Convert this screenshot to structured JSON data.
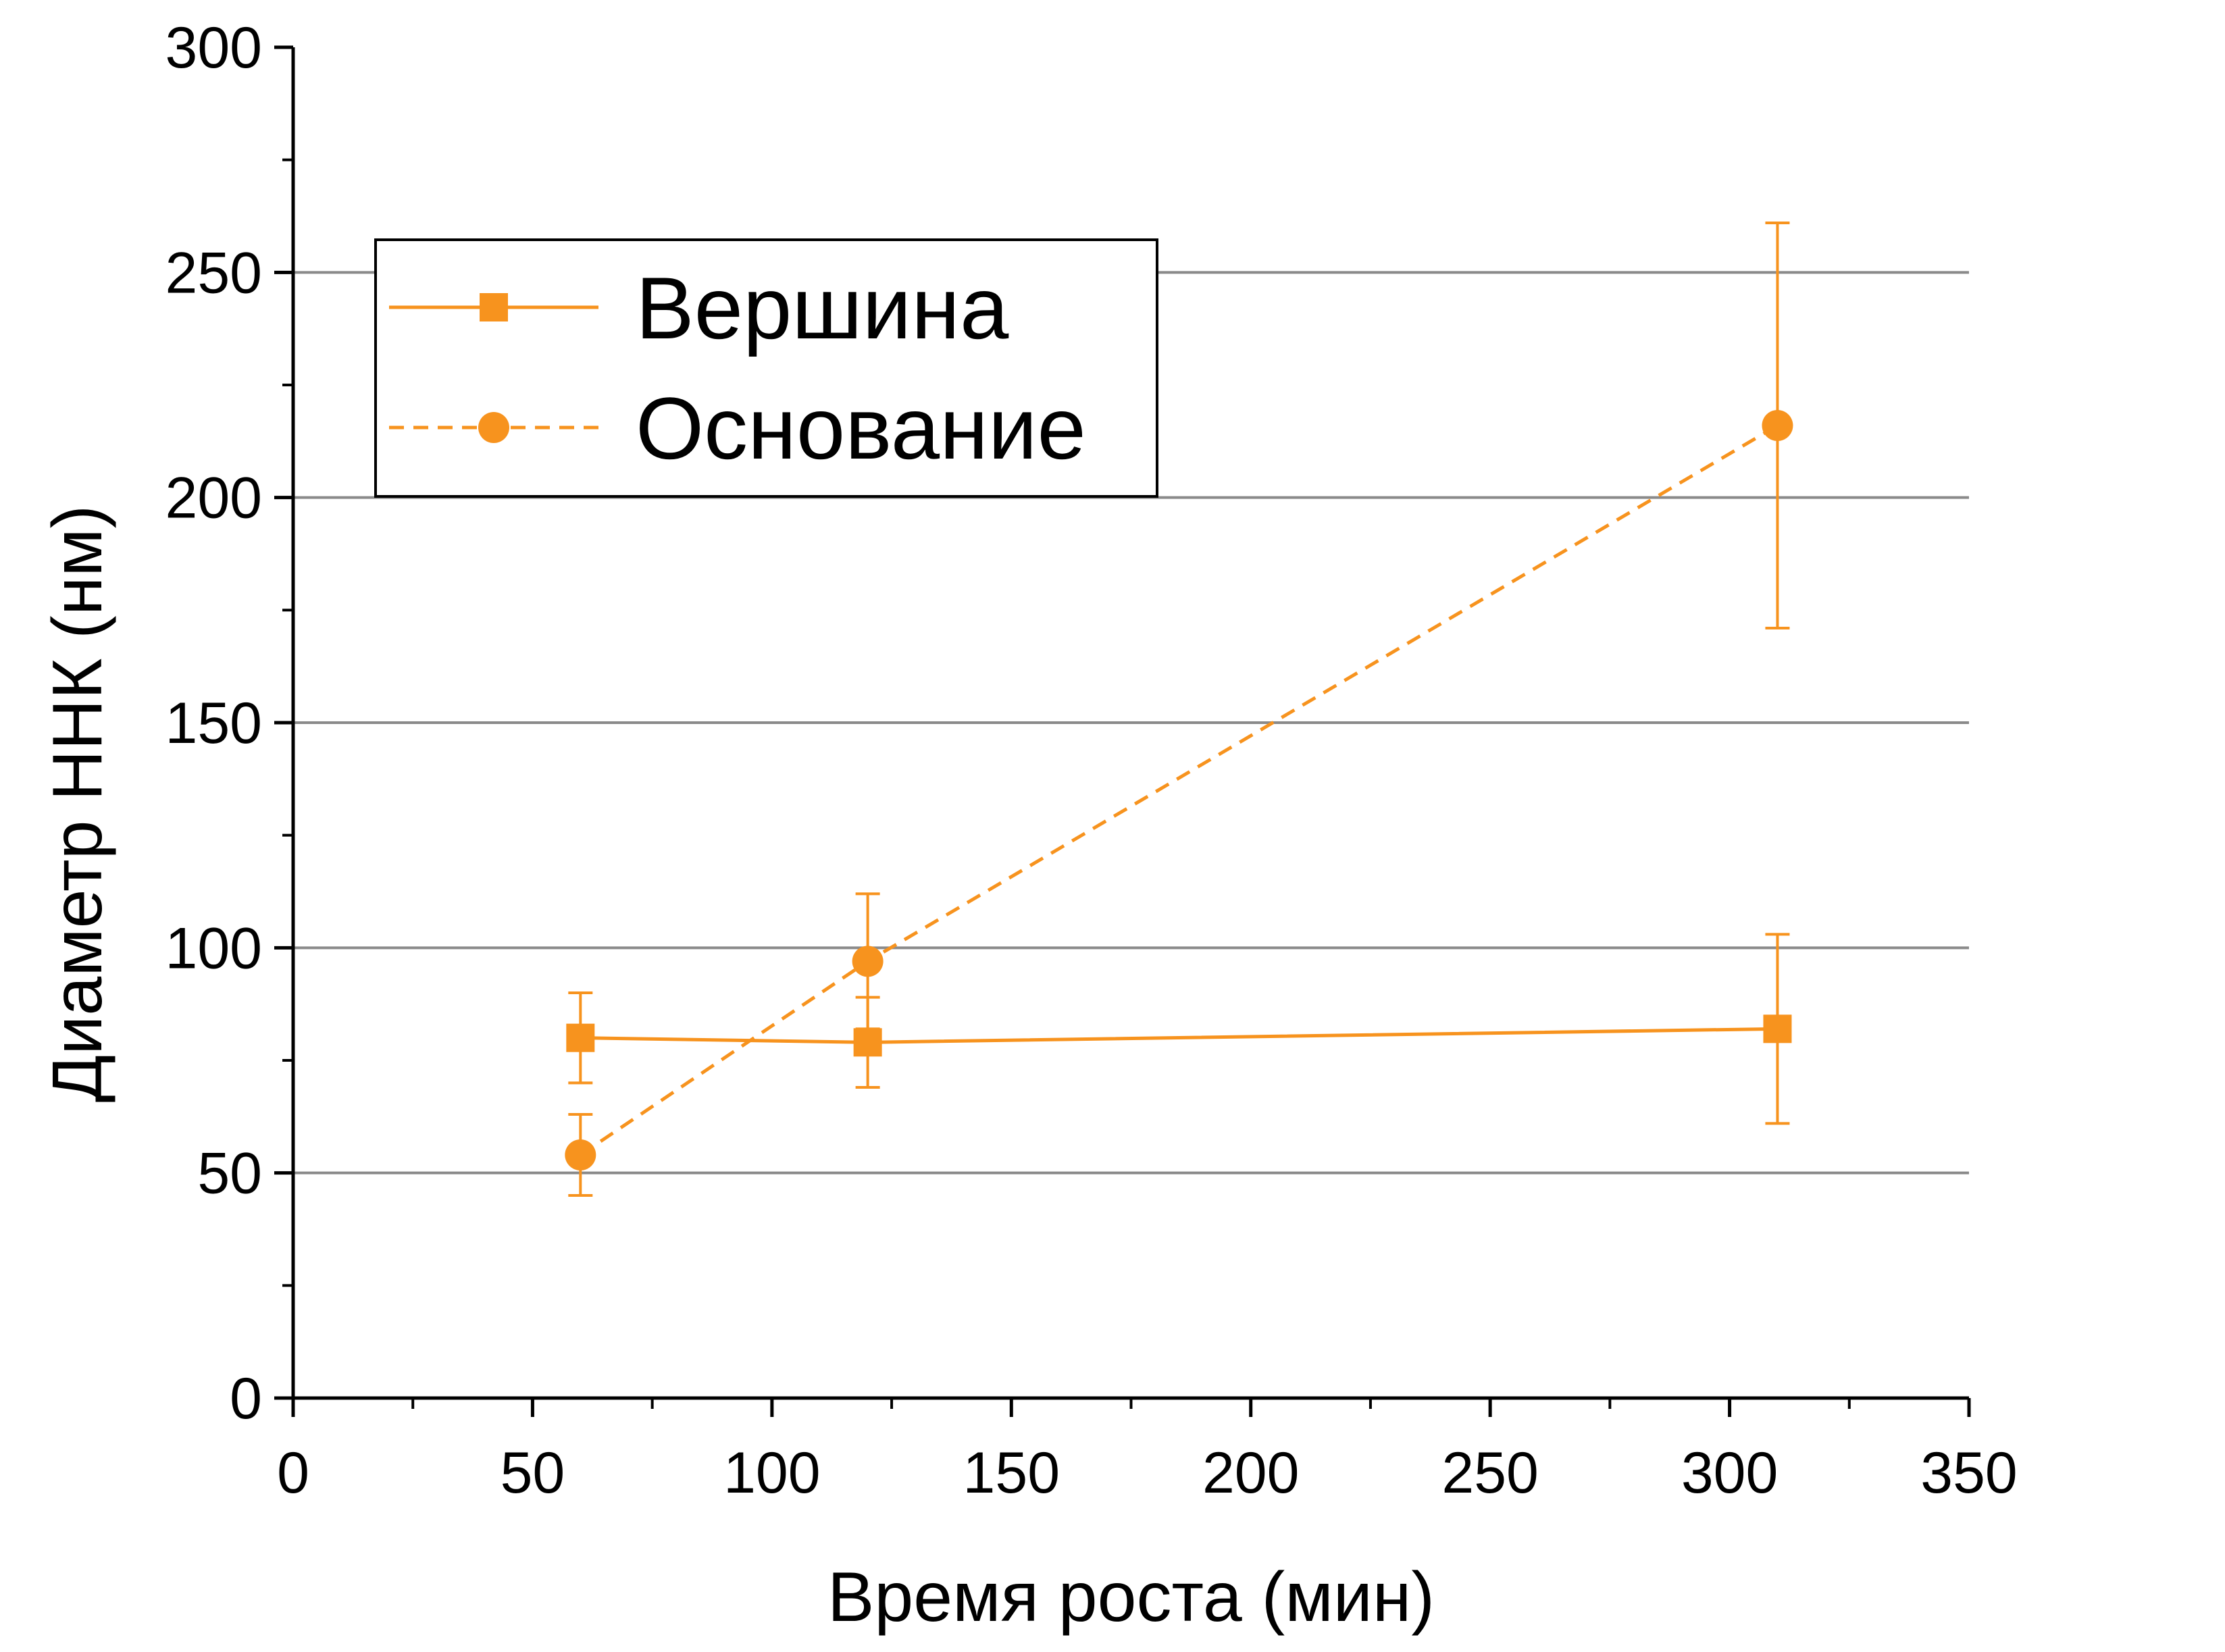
{
  "chart_data": {
    "type": "line",
    "xlabel": "Время роста (мин)",
    "ylabel": "Диаметр ННК (нм)",
    "xlim": [
      0,
      350
    ],
    "ylim": [
      0,
      300
    ],
    "xticks": [
      "0",
      "50",
      "100",
      "150",
      "200",
      "250",
      "300",
      "350"
    ],
    "yticks": [
      "0",
      "50",
      "100",
      "150",
      "200",
      "250",
      "300"
    ],
    "grid": "horizontal major gridlines",
    "legend_position": "top-left",
    "series": [
      {
        "name": "Вершина",
        "marker": "square",
        "line": "solid",
        "color": "#F7931E",
        "x": [
          60,
          120,
          310
        ],
        "y": [
          80,
          79,
          82
        ],
        "err_low": [
          70,
          69,
          61
        ],
        "err_high": [
          90,
          89,
          103
        ]
      },
      {
        "name": "Основание",
        "marker": "circle",
        "line": "dashed",
        "color": "#F7931E",
        "x": [
          60,
          120,
          310
        ],
        "y": [
          54,
          97,
          216
        ],
        "err_low": [
          45,
          82,
          171
        ],
        "err_high": [
          63,
          112,
          261
        ]
      }
    ]
  }
}
